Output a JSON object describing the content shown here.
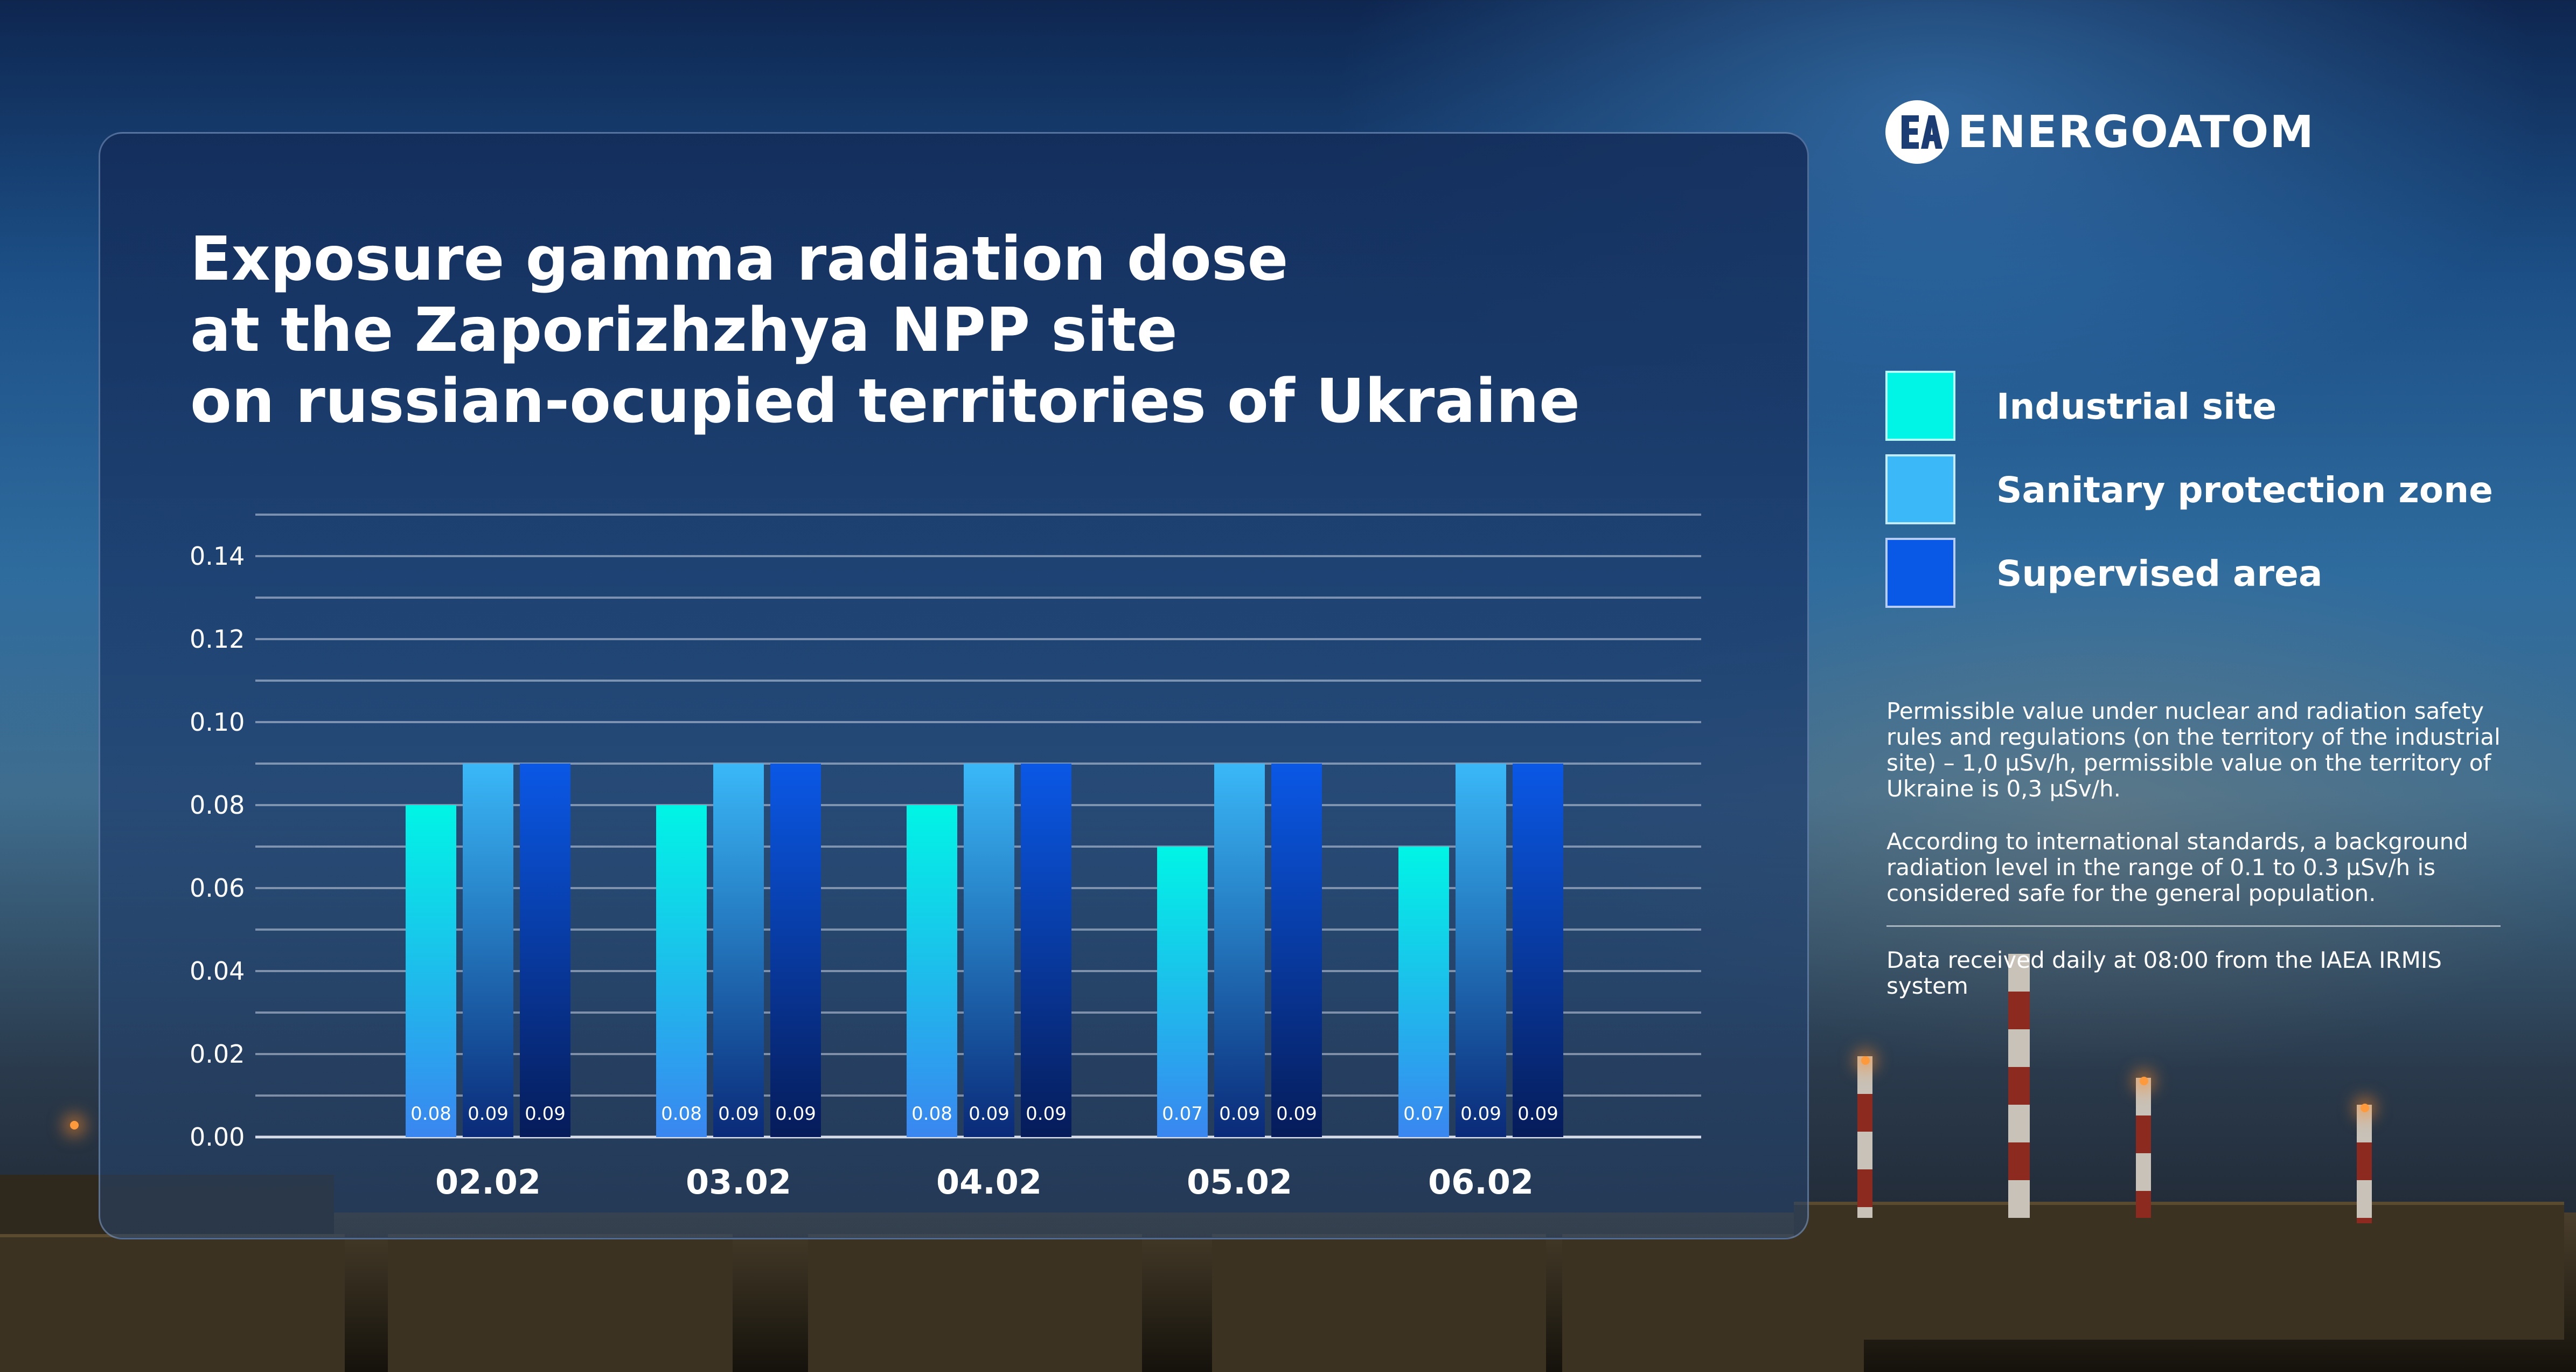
{
  "brand": {
    "logo_text": "ENERGOATOM",
    "logo_monogram": "EA"
  },
  "title_lines": [
    "Exposure gamma radiation dose",
    "at the Zaporizhzhya NPP site",
    "on russian-ocupied territories of Ukraine"
  ],
  "legend": [
    {
      "label": "Industrial site",
      "color": "#00f5e6"
    },
    {
      "label": "Sanitary protection zone",
      "color": "#3ab8f8"
    },
    {
      "label": "Supervised area",
      "color": "#0a58e6"
    }
  ],
  "notes": {
    "permissible": "Permissible value under nuclear and radiation safety rules and regulations (on the territory of the industrial site) – 1,0 µSv/h, permissible value on the territory of Ukraine is 0,3 µSv/h.",
    "international": "According to international standards, a background radiation level in the range of 0.1 to 0.3 µSv/h is considered safe for the general population.",
    "source": "Data received daily at 08:00 from the IAEA IRMIS system"
  },
  "colors": {
    "industrial_top": "#00f5e6",
    "industrial_bottom": "#3a86f0",
    "sanitary_top": "#3ab8f8",
    "sanitary_bottom": "#0a2a78",
    "supervised_top": "#0a58e6",
    "supervised_bottom": "#061c5a"
  },
  "chart_data": {
    "type": "bar",
    "title": "",
    "xlabel": "",
    "ylabel": "",
    "categories": [
      "02.02",
      "03.02",
      "04.02",
      "05.02",
      "06.02"
    ],
    "series": [
      {
        "name": "Industrial site",
        "values": [
          0.08,
          0.08,
          0.08,
          0.07,
          0.07
        ],
        "labels": [
          "0.08",
          "0.08",
          "0.08",
          "0.07",
          "0.07"
        ]
      },
      {
        "name": "Sanitary protection zone",
        "values": [
          0.09,
          0.09,
          0.09,
          0.09,
          0.09
        ],
        "labels": [
          "0.09",
          "0.09",
          "0.09",
          "0.09",
          "0.09"
        ]
      },
      {
        "name": "Supervised area",
        "values": [
          0.09,
          0.09,
          0.09,
          0.09,
          0.09
        ],
        "labels": [
          "0.09",
          "0.09",
          "0.09",
          "0.09",
          "0.09"
        ]
      }
    ],
    "ylim": [
      0,
      0.15
    ],
    "yticks": [
      0.0,
      0.02,
      0.04,
      0.06,
      0.08,
      0.1,
      0.12,
      0.14
    ],
    "ytick_labels": [
      "0.00",
      "0.02",
      "0.04",
      "0.06",
      "0.08",
      "0.10",
      "0.12",
      "0.14"
    ],
    "grid": true,
    "legend_position": "right"
  }
}
